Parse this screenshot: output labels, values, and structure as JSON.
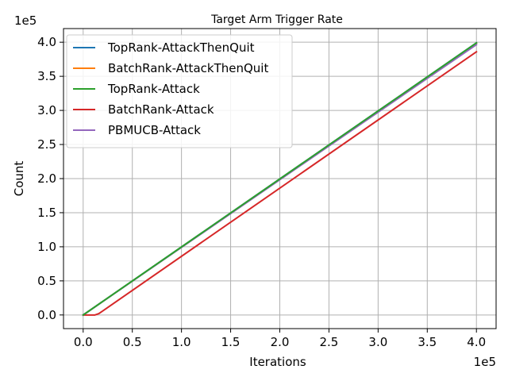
{
  "chart_data": {
    "type": "line",
    "title": "Target Arm Trigger Rate",
    "xlabel": "Iterations",
    "ylabel": "Count",
    "x_offset_label": "1e5",
    "y_offset_label": "1e5",
    "xlim": [
      -20000,
      420000
    ],
    "ylim": [
      -20000,
      420000
    ],
    "x_ticks": [
      0,
      50000,
      100000,
      150000,
      200000,
      250000,
      300000,
      350000,
      400000
    ],
    "x_tick_labels": [
      "0.0",
      "0.5",
      "1.0",
      "1.5",
      "2.0",
      "2.5",
      "3.0",
      "3.5",
      "4.0"
    ],
    "y_ticks": [
      0,
      50000,
      100000,
      150000,
      200000,
      250000,
      300000,
      350000,
      400000
    ],
    "y_tick_labels": [
      "0.0",
      "0.5",
      "1.0",
      "1.5",
      "2.0",
      "2.5",
      "3.0",
      "3.5",
      "4.0"
    ],
    "grid": true,
    "legend_position": "top-left",
    "series": [
      {
        "name": "TopRank-AttackThenQuit",
        "color": "#1f77b4",
        "x": [
          0,
          400000
        ],
        "y": [
          0,
          399000
        ]
      },
      {
        "name": "BatchRank-AttackThenQuit",
        "color": "#ff7f0e",
        "x": [
          0,
          400000
        ],
        "y": [
          0,
          398500
        ]
      },
      {
        "name": "TopRank-Attack",
        "color": "#2ca02c",
        "x": [
          0,
          400000
        ],
        "y": [
          0,
          399000
        ]
      },
      {
        "name": "BatchRank-Attack",
        "color": "#d62728",
        "x": [
          0,
          12000,
          16000,
          400000
        ],
        "y": [
          0,
          0,
          2000,
          386000
        ]
      },
      {
        "name": "PBMUCB-Attack",
        "color": "#9467bd",
        "x": [
          0,
          400000
        ],
        "y": [
          0,
          396500
        ]
      }
    ]
  }
}
